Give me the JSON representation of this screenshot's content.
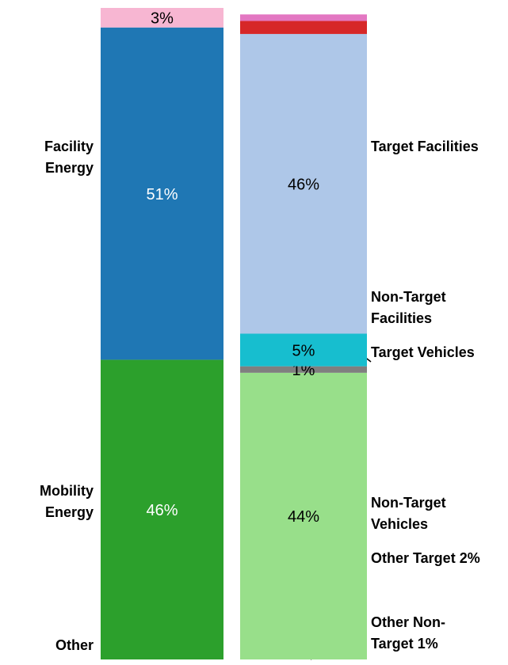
{
  "chart_data": {
    "type": "stacked_bar",
    "ylim": [
      0,
      100
    ],
    "stacks": [
      {
        "segments": [
          {
            "name": "Facility Energy",
            "color": "#2ca02c",
            "value": 46,
            "value_label": "46%",
            "label_color": "#ffffff"
          },
          {
            "name": "Mobility Energy",
            "color": "#1f77b4",
            "value": 51,
            "value_label": "51%",
            "label_color": "#ffffff"
          },
          {
            "name": "Other",
            "color": "#f7b6d2",
            "value": 3,
            "value_label": "3%",
            "label_color": "#000000"
          }
        ]
      },
      {
        "segments": [
          {
            "name": "Target Facilities",
            "color": "#98df8a",
            "value": 44,
            "value_label": "44%",
            "label_color": "#000000"
          },
          {
            "name": "Non-Target Facilities",
            "color": "#7f7f7f",
            "value": 1,
            "value_label": "1%",
            "label_color": "#000000"
          },
          {
            "name": "Target Vehicles",
            "color": "#17becf",
            "value": 5,
            "value_label": "5%",
            "label_color": "#000000"
          },
          {
            "name": "Non-Target Vehicles",
            "color": "#aec7e8",
            "value": 46,
            "value_label": "46%",
            "label_color": "#000000"
          },
          {
            "name": "Other Target",
            "color": "#d62728",
            "value": 2,
            "value_label": "2%",
            "label_color": "#000000"
          },
          {
            "name": "Other Non-Target",
            "color": "#e377c2",
            "value": 1,
            "value_label": "1%",
            "label_color": "#000000"
          }
        ]
      }
    ]
  }
}
